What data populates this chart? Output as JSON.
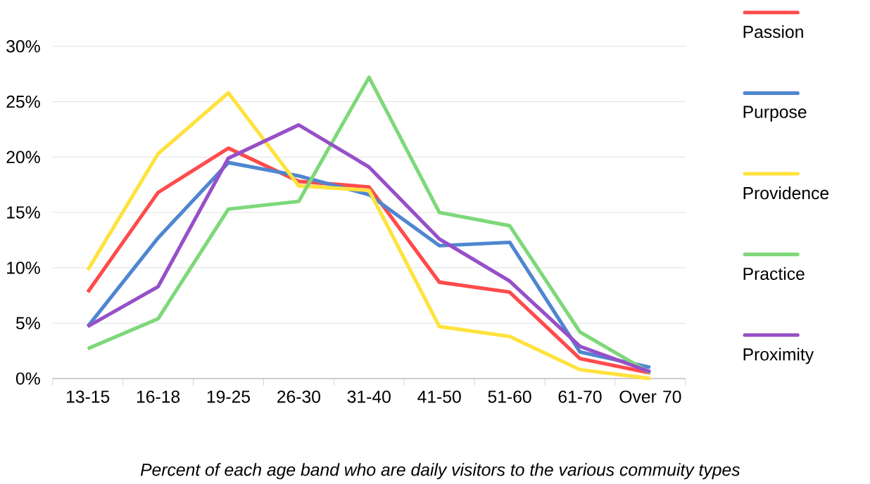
{
  "chart_data": {
    "type": "line",
    "categories": [
      "13-15",
      "16-18",
      "19-25",
      "26-30",
      "31-40",
      "41-50",
      "51-60",
      "61-70",
      "Over 70"
    ],
    "series": [
      {
        "name": "Passion",
        "color": "#ff4b4b",
        "values": [
          7.8,
          16.8,
          20.8,
          17.8,
          17.3,
          8.7,
          7.8,
          1.8,
          0.5
        ]
      },
      {
        "name": "Purpose",
        "color": "#4f86d0",
        "values": [
          4.7,
          12.7,
          19.5,
          18.3,
          16.6,
          12.0,
          12.3,
          2.4,
          1.0
        ]
      },
      {
        "name": "Providence",
        "color": "#ffe23c",
        "values": [
          9.8,
          20.3,
          25.8,
          17.4,
          17.0,
          4.7,
          3.8,
          0.8,
          0.0
        ]
      },
      {
        "name": "Practice",
        "color": "#7ed87a",
        "values": [
          2.7,
          5.4,
          15.3,
          16.0,
          27.2,
          15.0,
          13.8,
          4.2,
          0.5
        ]
      },
      {
        "name": "Proximity",
        "color": "#9650c8",
        "values": [
          4.7,
          8.3,
          19.9,
          22.9,
          19.1,
          12.6,
          8.8,
          2.9,
          0.6
        ]
      }
    ],
    "ylim": [
      0,
      30
    ],
    "yticks": [
      {
        "value": 0,
        "label": "0%"
      },
      {
        "value": 5,
        "label": "5%"
      },
      {
        "value": 10,
        "label": "10%"
      },
      {
        "value": 15,
        "label": "15%"
      },
      {
        "value": 20,
        "label": "20%"
      },
      {
        "value": 25,
        "label": "25%"
      },
      {
        "value": 30,
        "label": "30%"
      }
    ],
    "grid": "y",
    "legend": "right",
    "marker": "none",
    "line_style": "solid",
    "annotations": [
      "*Percent of each age band who are daily visitors to the various commuity types*"
    ]
  }
}
